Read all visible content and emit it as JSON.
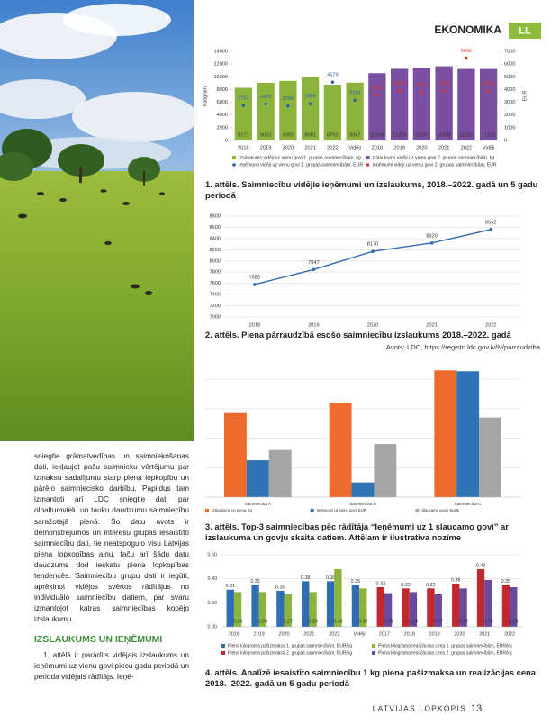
{
  "header": {
    "section": "EKONOMIKA",
    "logo": "LL"
  },
  "article": {
    "intro": "sniegtie grāmatvedības un saimniekošanas dati, iekļaujot pašu saimnieku vērtējumu par izmaksu sadalījumu starp piena lopkopību un pārējo saimniecisko darbību. Papildus tam izmantoti arī LDC sniegtie dati par olbaltumvielu un tauku daudzumu saimniecību saražotajā pienā. Šo datu avots ir demonstrējumos un interešu grupās iesaistīto saimniecību dati, tie neatspoguļo visu Latvijas piena lopkopības ainu, taču arī šādu datu daudzums dod ieskatu piena lopkopības tendencēs. Saimniecību grupu dati ir iegūti, aprēķinot vidējos svērtos rādītājus no individuālo saimniecību datiem, par svaru izmantojot katras saimniecības kopējo izslaukumu.",
    "heading": "IZSLAUKUMS UN IEŅĒMUMI",
    "body": "1. attēlā ir parādīts vidējais izslaukums un ieņēmumi uz vienu govi piecu gadu periodā un perioda vidējais rādītājs. Ieņē-"
  },
  "figures": [
    {
      "caption": "1. attēls. Saimniecību vidējie ieņēmumi un izslaukums, 2018.–2022. gadā un 5 gadu periodā",
      "chart": {
        "type": "bar",
        "y_label": "Kilogrami",
        "y2_label": "EUR",
        "categories": [
          "2018",
          "2019",
          "2020",
          "2021",
          "2022",
          "Vidēji",
          "2018",
          "2019",
          "2020",
          "2021",
          "2022",
          "Vidēji"
        ],
        "ylim": [
          0,
          14000
        ],
        "yticks": [
          0,
          2000,
          4000,
          6000,
          8000,
          10000,
          12000,
          14000
        ],
        "y2lim": [
          0,
          7000
        ],
        "y2ticks": [
          0,
          1000,
          2000,
          3000,
          4000,
          5000,
          6000,
          7000
        ],
        "grid": false,
        "legend": "bottom",
        "series": [
          {
            "name": "Izslaukums vidēji uz vienu govi 1. grupas saimniecībām, kg",
            "color": "#8cb43c",
            "mark": "bar",
            "label_position": "bottom",
            "values": [
              8271,
              9063,
              9359,
              9981,
              8762,
              9087,
              null,
              null,
              null,
              null,
              null,
              null
            ]
          },
          {
            "name": "Izslaukums vidēji uz vienu govi 2. grupas saimniecībām, kg",
            "color": "#7a4ea0",
            "mark": "bar",
            "label_position": "bottom",
            "values": [
              null,
              null,
              null,
              null,
              null,
              null,
              10568,
              11250,
              11397,
              11658,
              11231,
              11223
            ]
          },
          {
            "name": "Ieņēmumi vidēji uz vienu govi 1. grupas saimniecībām, EUR",
            "color": "#2a5caa",
            "mark": "dot",
            "axis": "y2",
            "label_position": "top",
            "values": [
              2753,
              2870,
              2706,
              2884,
              4579,
              3166,
              null,
              null,
              null,
              null,
              null,
              null
            ]
          },
          {
            "name": "Ieņēmumi vidēji uz vienu govi 2. grupas saimniecībām, EUR",
            "color": "#e03c31",
            "mark": "dot",
            "axis": "y2",
            "label_position": "top",
            "values": [
              null,
              null,
              null,
              null,
              null,
              null,
              3582,
              3893,
              3768,
              3896,
              6462,
              3895
            ]
          }
        ]
      }
    },
    {
      "caption": "2. attēls. Piena pārraudzībā esošo saimniecību izslaukums 2018.–2022. gadā",
      "source": "Avots: LDC, https://registri.ldc.gov.lv/lv/parraudziba",
      "chart": {
        "type": "line",
        "categories": [
          "2018",
          "2019",
          "2020",
          "2021",
          "2022"
        ],
        "values": [
          7580,
          7847,
          8170,
          8320,
          8562
        ],
        "color": "#2e6db4",
        "ylim": [
          7000,
          8800
        ],
        "yticks": [
          7000,
          7200,
          7400,
          7600,
          7800,
          8000,
          8200,
          8400,
          8600,
          8800
        ],
        "grid": true,
        "data_labels": true
      }
    },
    {
      "caption": "3. attēls. Top-3 saimniecības pēc rādītāja “Ieņēmumi uz 1 slaucamo govi” ar izslaukuma un govju skaita datiem. Attēlam ir ilustratīva nozīme",
      "chart": {
        "type": "bar",
        "categories": [
          "Saimniecība A",
          "Saimniecība B",
          "Saimniecība C"
        ],
        "ylim": [
          0,
          4.4
        ],
        "yticks": [
          0,
          1,
          2,
          3,
          4
        ],
        "tick_labels": false,
        "grid": true,
        "legend": "bottom",
        "series": [
          {
            "name": "Izslaukums no piena, kg",
            "color": "#ed6b2d",
            "mark": "bar",
            "values": [
              2.85,
              3.2,
              4.3
            ]
          },
          {
            "name": "Ieņēmumi uz vienu govi, EUR",
            "color": "#2f75b5",
            "mark": "bar",
            "values": [
              1.25,
              0.5,
              4.27
            ]
          },
          {
            "name": "Slaucamo govju skaits",
            "color": "#a5a5a5",
            "mark": "bar",
            "values": [
              1.6,
              1.8,
              2.7
            ]
          }
        ]
      }
    },
    {
      "caption": "4. attēls. Analīzē iesaistīto saimniecību 1 kg piena pašizmaksa un realizācijas cena, 2018.–2022. gadā un 5 gadu periodā",
      "chart": {
        "type": "bar",
        "categories": [
          "2018",
          "2019",
          "2020",
          "2021",
          "2022",
          "Vidēji",
          "2017",
          "2018",
          "2019",
          "2020",
          "2021",
          "2022"
        ],
        "ylim": [
          0,
          0.6
        ],
        "yticks": [
          {
            "value": 0,
            "label": "0.00"
          },
          {
            "value": 0.2,
            "label": "0.20"
          },
          {
            "value": 0.4,
            "label": "0.40"
          },
          {
            "value": 0.6,
            "label": "0.60"
          }
        ],
        "grid": true,
        "legend": "bottom",
        "series": [
          {
            "name": "Piena kilograma pašizmaksa 1. grupas saimniecībām, EUR/kg",
            "color": "#2f6db5",
            "mark": "bar",
            "label_position": "top",
            "values": [
              0.31,
              0.35,
              0.3,
              0.38,
              0.38,
              0.35,
              null,
              null,
              null,
              null,
              null,
              null
            ],
            "value_labels": [
              "0.31",
              "0.35",
              "0.30",
              "0.38",
              "0.38",
              "0.35",
              null,
              null,
              null,
              null,
              null,
              null
            ]
          },
          {
            "name": "Piena kilograma realizācijas cena 1. grupas saimniecībām, EUR/kg",
            "color": "#8cb43c",
            "mark": "bar",
            "label_position": "bottom",
            "values": [
              0.29,
              0.29,
              0.27,
              0.29,
              0.48,
              0.32,
              null,
              null,
              null,
              null,
              null,
              null
            ],
            "value_labels": [
              "0.29",
              "0.29",
              "0.27",
              "0.29",
              "0.48",
              "0.32",
              null,
              null,
              null,
              null,
              null,
              null
            ]
          },
          {
            "name": "Piena kilograma pašizmaksa 2. grupas saimniecībām, EUR/kg",
            "color": "#c0282d",
            "mark": "bar",
            "label_position": "top",
            "values": [
              null,
              null,
              null,
              null,
              null,
              null,
              0.33,
              0.32,
              0.32,
              0.36,
              0.48,
              0.35
            ],
            "value_labels": [
              null,
              null,
              null,
              null,
              null,
              null,
              "0.33",
              "0.32",
              "0.32",
              "0.36",
              "0.48",
              "0.35"
            ]
          },
          {
            "name": "Piena kilograma realizācijas cena 2. grupas saimniecībām, EUR/kg",
            "color": "#6a4a9c",
            "mark": "bar",
            "label_position": "bottom",
            "values": [
              null,
              null,
              null,
              null,
              null,
              null,
              0.28,
              0.29,
              0.27,
              0.32,
              0.39,
              0.33
            ],
            "value_labels": [
              null,
              null,
              null,
              null,
              null,
              null,
              "0.28",
              "0.29",
              "0.27",
              "0.32",
              "0.39",
              "0.33"
            ]
          }
        ]
      }
    }
  ],
  "footer": {
    "magazine": "LATVIJAS LOPKOPIS",
    "page": 13
  }
}
